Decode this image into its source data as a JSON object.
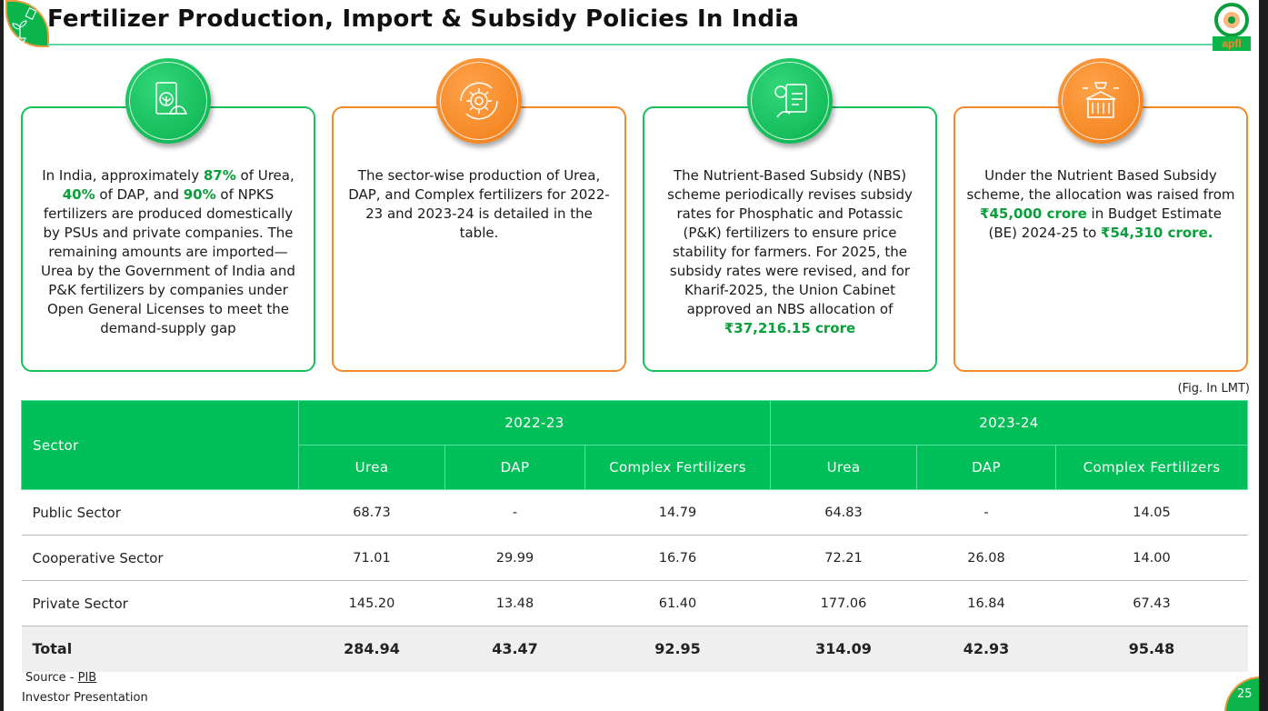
{
  "header": {
    "title": "Fertilizer Production, Import & Subsidy Policies In India",
    "logo_text": "apfl"
  },
  "colors": {
    "green": "#00bf58",
    "orange": "#f4892a",
    "highlight": "#0a9e3c"
  },
  "cards": [
    {
      "icon": "fertilizer-bag-icon",
      "parts": [
        {
          "t": "In India, approximately "
        },
        {
          "t": "87%",
          "hl": true
        },
        {
          "t": " of Urea, "
        },
        {
          "t": "40%",
          "hl": true
        },
        {
          "t": " of DAP, and "
        },
        {
          "t": "90%",
          "hl": true
        },
        {
          "t": " of NPKS fertilizers are produced domestically by PSUs and private companies. The remaining amounts are imported—Urea by the Government of India and P&K fertilizers by companies under Open General Licenses to meet the demand-supply gap"
        }
      ]
    },
    {
      "icon": "gear-cycle-icon",
      "parts": [
        {
          "t": "The sector-wise production of Urea, DAP, and Complex fertilizers for 2022-23 and 2023-24 is detailed in the table."
        }
      ]
    },
    {
      "icon": "policy-document-icon",
      "parts": [
        {
          "t": "The Nutrient-Based Subsidy (NBS) scheme periodically revises subsidy rates for Phosphatic and Potassic (P&K) fertilizers to ensure price stability for farmers. For 2025, the subsidy rates were revised, and for Kharif-2025, the Union Cabinet approved an NBS allocation of "
        },
        {
          "t": "₹37,216.15 crore",
          "hl": true
        }
      ]
    },
    {
      "icon": "government-funds-icon",
      "parts": [
        {
          "t": "Under the Nutrient Based Subsidy scheme, the allocation was raised from "
        },
        {
          "t": "₹45,000 crore",
          "hl": true
        },
        {
          "t": " in Budget Estimate (BE) 2024-25 to "
        },
        {
          "t": "₹54,310 crore.",
          "hl": true
        }
      ]
    }
  ],
  "table": {
    "unit_note": "(Fig. In LMT)",
    "sector_header": "Sector",
    "years": [
      "2022-23",
      "2023-24"
    ],
    "sub_headers": [
      "Urea",
      "DAP",
      "Complex Fertilizers",
      "Urea",
      "DAP",
      "Complex Fertilizers"
    ],
    "rows": [
      [
        "Public Sector",
        "68.73",
        "-",
        "14.79",
        "64.83",
        "-",
        "14.05"
      ],
      [
        "Cooperative Sector",
        "71.01",
        "29.99",
        "16.76",
        "72.21",
        "26.08",
        "14.00"
      ],
      [
        "Private Sector",
        "145.20",
        "13.48",
        "61.40",
        "177.06",
        "16.84",
        "67.43"
      ]
    ],
    "total": [
      "Total",
      "284.94",
      "43.47",
      "92.95",
      "314.09",
      "42.93",
      "95.48"
    ]
  },
  "footer": {
    "source_label": "Source - ",
    "source_link": "PIB",
    "presentation": "Investor Presentation",
    "page": "25"
  }
}
